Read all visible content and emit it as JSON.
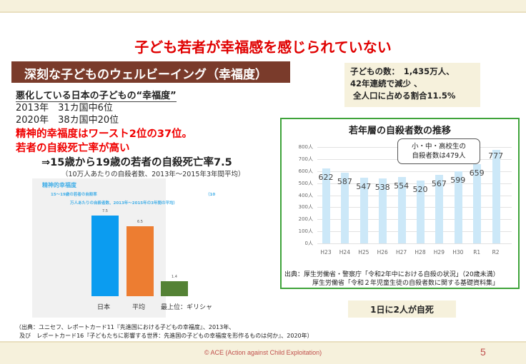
{
  "title": "子ども若者が幸福感を感じられていない",
  "section": "深刻な子どものウェルビーイング（幸福度）",
  "left": {
    "heading": "悪化している日本の子どもの“幸福度”",
    "lines": [
      "2013年　31カ国中6位",
      "2020年　38カ国中20位"
    ],
    "red": [
      "精神的幸福度はワースト2位の37位。",
      "若者の自殺死亡率が高い"
    ],
    "arrow": "⇒15歳から19歳の若者の自殺死亡率7.5",
    "note": "（10万人あたりの自殺者数、2013年～2015年3年間平均）"
  },
  "chart_data": [
    {
      "type": "bar",
      "title": "精神的幸福度",
      "subtitle": "15～19歳の若者の自殺率　（10万人あたりの自殺者数、2013年～2015年の3年間の平均）",
      "subtitle_lines": [
        "15～19歳の若者の自殺率",
        "（10",
        "万人あたりの自殺者数、2013年～2015年の3年間の平均）"
      ],
      "categories": [
        "日本",
        "平均",
        "最上位：ギリシャ"
      ],
      "values": [
        7.5,
        6.5,
        1.4
      ],
      "value_labels": [
        "7.5",
        "6.5",
        "1.4"
      ],
      "colors": [
        "#0b9cf0",
        "#ed7d31",
        "#548235"
      ]
    },
    {
      "type": "bar",
      "title": "若年層の自殺者数の推移",
      "categories": [
        "H23",
        "H24",
        "H25",
        "H26",
        "H27",
        "H28",
        "H29",
        "H30",
        "R1",
        "R2"
      ],
      "values": [
        622,
        587,
        547,
        538,
        554,
        520,
        567,
        599,
        659,
        777
      ],
      "ylim": [
        0,
        800
      ],
      "yticks": [
        "0人",
        "100人",
        "200人",
        "300人",
        "400人",
        "500人",
        "600人",
        "700人",
        "800人"
      ],
      "grid": true,
      "color": "#cce8f8",
      "annotation": [
        "小・中・高校生の",
        "自殺者数は479人"
      ]
    }
  ],
  "kids": {
    "lines": [
      "子どもの数：　1,435万人、",
      "42年連続で減少 、",
      " 全人口に占める割合11.5%"
    ]
  },
  "right_sources": [
    "出典：厚生労働省・警察庁「令和2年中における自殺の状況」（20歳未満）",
    "厚生労働省「令和２年児童生徒の自殺者数に関する基礎資料集」"
  ],
  "daily": "1日に2人が自死",
  "citation": [
    "（出典：ユニセフ、レポートカード11『先進国における子どもの幸福度』、2013年、",
    "  及び　レポートカード16『子どもたちに影響する世界：先進国の子どもの幸福度を形作るものは何か』、2020年）"
  ],
  "footer": {
    "copyright": "© ACE (Action against Child Exploitation)",
    "page": "5"
  }
}
